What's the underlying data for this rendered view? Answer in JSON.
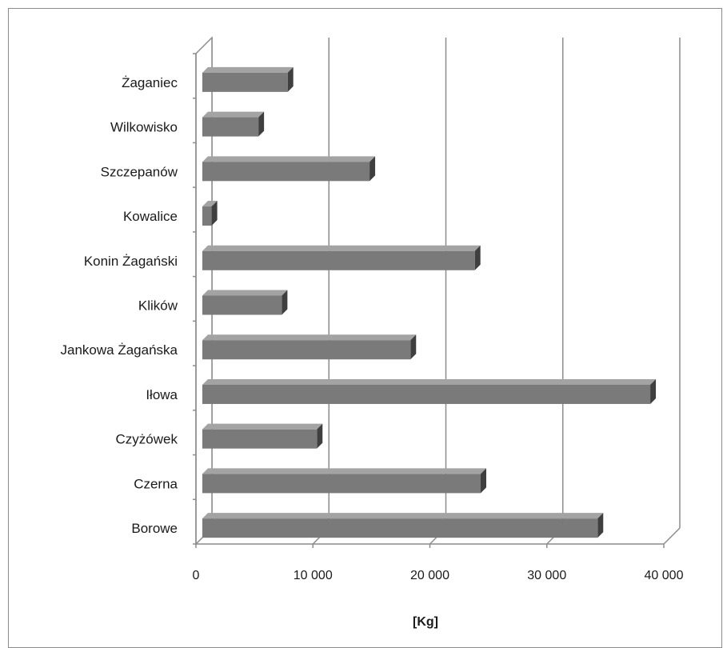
{
  "chart_data": {
    "type": "bar",
    "orientation": "horizontal",
    "style": "3d-clustered",
    "categories": [
      "Borowe",
      "Czerna",
      "Czyżówek",
      "Iłowa",
      "Jankowa Żagańska",
      "Klików",
      "Konin Żagański",
      "Kowalice",
      "Szczepanów",
      "Wilkowisko",
      "Żaganiec"
    ],
    "values": [
      34000,
      24000,
      10000,
      38500,
      18000,
      7000,
      23500,
      1000,
      14500,
      5000,
      7500
    ],
    "xlabel": "[Kg]",
    "ylabel": "",
    "xlim": [
      0,
      40000
    ],
    "xticks": [
      0,
      10000,
      20000,
      30000,
      40000
    ],
    "xtick_labels": [
      "0",
      "10 000",
      "20 000",
      "30 000",
      "40 000"
    ],
    "grid": true,
    "legend": "none",
    "colors": {
      "bar_front": "#7a7a7a",
      "bar_top": "#a3a3a3",
      "bar_side": "#3f3f3f",
      "gridline": "#8c8c8c"
    }
  }
}
